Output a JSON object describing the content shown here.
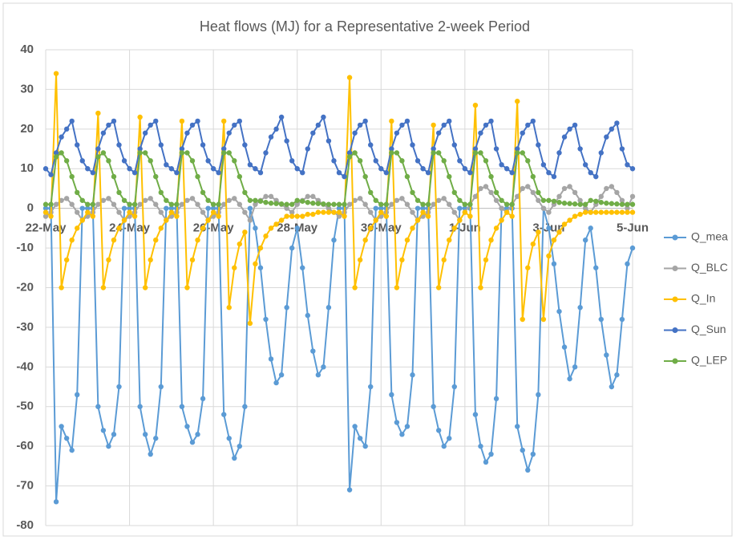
{
  "chart_data": {
    "type": "line",
    "title": "Heat flows (MJ) for a Representative 2-week Period",
    "categories": [
      "22-May",
      null,
      null,
      null,
      null,
      null,
      null,
      null,
      null,
      null,
      null,
      null,
      null,
      null,
      null,
      null,
      "24-May",
      null,
      null,
      null,
      null,
      null,
      null,
      null,
      null,
      null,
      null,
      null,
      null,
      null,
      null,
      null,
      "26-May",
      null,
      null,
      null,
      null,
      null,
      null,
      null,
      null,
      null,
      null,
      null,
      null,
      null,
      null,
      null,
      "28-May",
      null,
      null,
      null,
      null,
      null,
      null,
      null,
      null,
      null,
      null,
      null,
      null,
      null,
      null,
      null,
      "30-May",
      null,
      null,
      null,
      null,
      null,
      null,
      null,
      null,
      null,
      null,
      null,
      null,
      null,
      null,
      null,
      "1-Jun",
      null,
      null,
      null,
      null,
      null,
      null,
      null,
      null,
      null,
      null,
      null,
      null,
      null,
      null,
      null,
      "3-Jun",
      null,
      null,
      null,
      null,
      null,
      null,
      null,
      null,
      null,
      null,
      null,
      null,
      null,
      null,
      null,
      "5-Jun"
    ],
    "series": [
      {
        "name": "Q_mea",
        "color": "#5b9bd5",
        "values": [
          0,
          0,
          -74,
          -55,
          -58,
          -61,
          -47,
          0,
          0,
          0,
          -50,
          -56,
          -60,
          -57,
          -45,
          0,
          0,
          0,
          -50,
          -57,
          -62,
          -58,
          -45,
          0,
          0,
          0,
          -50,
          -55,
          -59,
          -57,
          -48,
          0,
          0,
          0,
          -52,
          -58,
          -63,
          -60,
          -50,
          0,
          -5,
          -15,
          -28,
          -38,
          -44,
          -42,
          -25,
          -10,
          -5,
          -15,
          -27,
          -36,
          -42,
          -40,
          -25,
          -8,
          0,
          0,
          -71,
          -55,
          -58,
          -60,
          -45,
          0,
          0,
          0,
          -47,
          -54,
          -57,
          -55,
          -42,
          0,
          0,
          0,
          -50,
          -56,
          -60,
          -58,
          -45,
          0,
          0,
          0,
          -52,
          -60,
          -64,
          -62,
          -48,
          0,
          0,
          0,
          -55,
          -61,
          -66,
          -62,
          -47,
          0,
          -5,
          -14,
          -26,
          -35,
          -43,
          -40,
          -25,
          -8,
          -5,
          -15,
          -28,
          -37,
          -45,
          -42,
          -28,
          -14,
          -10
        ]
      },
      {
        "name": "Q_BLC",
        "color": "#a5a5a5",
        "values": [
          -2,
          -1,
          1,
          2,
          2.5,
          1,
          -1,
          -3,
          -2,
          -1,
          1,
          2,
          2.5,
          1,
          -1,
          -3,
          -2,
          -1,
          1,
          2,
          2.5,
          1,
          -1,
          -3,
          -2,
          -1,
          1,
          2,
          2.5,
          1,
          -1,
          -3,
          -2,
          -1,
          1,
          2,
          2.5,
          1,
          -1,
          -3,
          1,
          2,
          3,
          3,
          2,
          1,
          0,
          -1,
          1,
          2,
          3,
          3,
          2,
          1,
          0,
          -1,
          -2,
          -1,
          1,
          2,
          2.5,
          1,
          -1,
          -3,
          -2,
          -1,
          1,
          2,
          2.5,
          1,
          -1,
          -3,
          -2,
          -1,
          1,
          2,
          2.5,
          1,
          -1,
          -3,
          -1,
          1,
          3,
          5,
          5.5,
          4,
          2,
          0,
          -1,
          1,
          3,
          5,
          5.5,
          4,
          2,
          0,
          -1,
          1,
          3,
          5,
          5.5,
          4,
          2,
          0,
          -1,
          1,
          3,
          5,
          5.5,
          4,
          2,
          0,
          3
        ]
      },
      {
        "name": "Q_In",
        "color": "#ffc000",
        "values": [
          -1,
          -2,
          34,
          -20,
          -13,
          -8,
          -5,
          -3,
          -1,
          -2,
          24,
          -20,
          -13,
          -8,
          -5,
          -3,
          -1,
          -2,
          23,
          -20,
          -13,
          -8,
          -5,
          -3,
          -1,
          -2,
          22,
          -20,
          -13,
          -8,
          -5,
          -3,
          -1,
          -2,
          22,
          -25,
          -15,
          -9,
          -6,
          -29,
          -14,
          -10,
          -7,
          -5,
          -4,
          -3,
          -2,
          -2,
          -2,
          -2,
          -1.5,
          -1.5,
          -1,
          -1,
          -1,
          -1,
          -1,
          -2,
          33,
          -20,
          -13,
          -8,
          -5,
          -3,
          -1,
          -2,
          22,
          -20,
          -13,
          -8,
          -5,
          -3,
          -1,
          -2,
          21,
          -20,
          -13,
          -8,
          -5,
          -3,
          -1,
          -2,
          26,
          -20,
          -13,
          -8,
          -5,
          -3,
          -1,
          -2,
          27,
          -28,
          -15,
          -9,
          -6,
          -28,
          -12,
          -8,
          -6,
          -4,
          -3,
          -2,
          -1.5,
          -1,
          -1,
          -1,
          -1,
          -1,
          -1,
          -1,
          -1,
          -1,
          -1
        ]
      },
      {
        "name": "Q_Sun",
        "color": "#4472c4",
        "values": [
          10,
          8.5,
          14,
          18,
          20,
          22,
          16,
          12,
          10,
          9,
          15,
          19,
          21,
          22,
          16,
          12,
          10,
          9,
          15,
          19,
          21,
          22,
          16,
          11,
          10,
          9,
          15,
          19,
          21,
          22,
          16,
          12,
          10,
          9,
          15,
          19,
          21,
          22,
          16,
          11,
          10,
          9,
          14,
          18,
          20,
          23,
          17,
          12,
          10,
          9,
          15,
          19,
          21,
          23,
          17,
          12,
          9,
          8,
          14,
          19,
          21,
          22,
          16,
          12,
          10,
          9,
          15,
          19,
          21,
          22,
          16,
          12,
          10,
          9,
          15,
          19,
          21,
          22,
          16,
          12,
          10,
          9,
          15,
          19,
          21,
          22,
          15,
          11,
          10,
          9,
          15,
          19,
          21,
          22,
          16,
          11,
          9,
          8,
          14,
          18,
          20,
          21,
          15,
          11,
          9,
          8,
          14,
          18,
          20,
          21.5,
          15,
          11,
          10
        ]
      },
      {
        "name": "Q_LEP",
        "color": "#70ad47",
        "values": [
          1,
          1,
          13,
          14,
          12,
          8,
          4,
          2,
          1,
          1,
          13,
          14,
          12,
          8,
          4,
          2,
          1,
          1,
          14,
          14,
          12,
          8,
          4,
          2,
          1,
          1,
          14,
          14,
          12,
          8,
          4,
          2,
          1,
          1,
          14,
          14,
          12,
          8,
          4,
          2,
          2,
          1.8,
          1.5,
          1.3,
          1.2,
          1.1,
          1,
          1,
          2,
          1.8,
          1.5,
          1.3,
          1.2,
          1.1,
          1,
          1,
          1,
          1,
          13,
          14,
          12,
          8,
          4,
          2,
          1,
          1,
          14,
          14,
          12,
          8,
          4,
          2,
          1,
          1,
          14,
          14,
          12,
          8,
          4,
          2,
          1,
          1,
          14,
          14,
          12,
          8,
          4,
          2,
          1,
          1,
          14,
          14,
          12,
          8,
          4,
          2,
          2,
          1.8,
          1.5,
          1.3,
          1.2,
          1.1,
          1,
          1,
          2,
          1.8,
          1.5,
          1.3,
          1.2,
          1.1,
          1,
          1,
          1
        ]
      }
    ],
    "ylim": [
      -80,
      40
    ],
    "yticks": [
      -80,
      -70,
      -60,
      -50,
      -40,
      -30,
      -20,
      -10,
      0,
      10,
      20,
      30,
      40
    ],
    "grid": true,
    "legend": "right"
  }
}
